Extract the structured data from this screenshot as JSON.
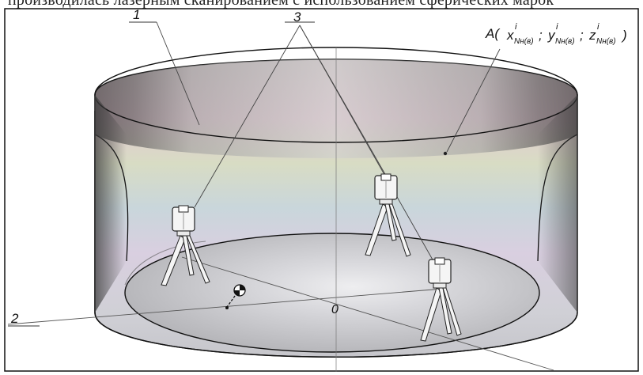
{
  "header_text": "производилась лазерным сканированием с использованием сферических марок",
  "labels": {
    "one": "1",
    "two": "2",
    "three": "3",
    "origin": "0",
    "point_prefix": "A(",
    "x": "x",
    "y": "y",
    "z": "z",
    "sup": "i",
    "sub": "Nн(в)",
    "sep1": "; ",
    "sep2": "; ",
    "close": ")"
  },
  "colors": {
    "outline": "#111111",
    "rim_dark": "#2a2a2a",
    "wall_light": "#d8d2cf",
    "floor": "#c9c7cc",
    "tripod_white": "#f5f5f5"
  }
}
